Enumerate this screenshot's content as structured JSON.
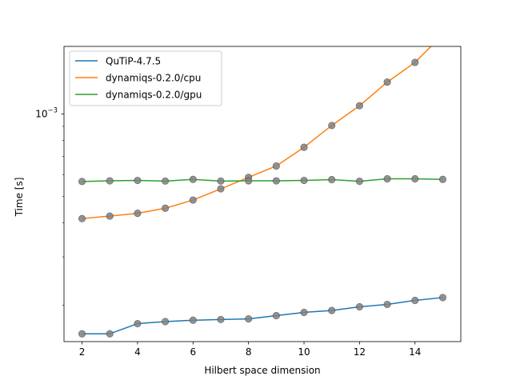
{
  "chart_data": {
    "type": "line",
    "xlabel": "Hilbert space dimension",
    "ylabel": "Time [s]",
    "yscale": "log",
    "xlim": [
      1.35,
      15.65
    ],
    "ylim": [
      0.000147,
      0.001765
    ],
    "x_ticks": [
      2,
      4,
      6,
      8,
      10,
      12,
      14
    ],
    "x_tick_labels": [
      "2",
      "4",
      "6",
      "8",
      "10",
      "12",
      "14"
    ],
    "y_major_ticks": [
      0.001
    ],
    "y_major_tick_labels": [
      {
        "base": "10",
        "exp": "−3"
      }
    ],
    "y_minor_ticks": [
      0.0002,
      0.0003,
      0.0004,
      0.0005,
      0.0006,
      0.0007,
      0.0008,
      0.0009
    ],
    "grid": false,
    "legend_position": "top-left",
    "marker_color": "#808080",
    "x": [
      2,
      3,
      4,
      5,
      6,
      7,
      8,
      9,
      10,
      11,
      12,
      13,
      14,
      15
    ],
    "series": [
      {
        "name": "QuTiP-4.7.5",
        "color": "#1f77b4",
        "values": [
          0.000157,
          0.000157,
          0.000171,
          0.000174,
          0.000176,
          0.000177,
          0.000178,
          0.000183,
          0.000188,
          0.000191,
          0.000197,
          0.000201,
          0.000208,
          0.000213
        ]
      },
      {
        "name": "dynamiqs-0.2.0/cpu",
        "color": "#ff7f0e",
        "values": [
          0.000414,
          0.000423,
          0.000433,
          0.000452,
          0.000484,
          0.000532,
          0.000586,
          0.000645,
          0.000755,
          0.000907,
          0.001071,
          0.001307,
          0.001543,
          0.001948
        ]
      },
      {
        "name": "dynamiqs-0.2.0/gpu",
        "color": "#2ca02c",
        "values": [
          0.000566,
          0.000569,
          0.000571,
          0.000568,
          0.000576,
          0.000568,
          0.000569,
          0.000569,
          0.000571,
          0.000575,
          0.000567,
          0.000579,
          0.000579,
          0.000576
        ]
      }
    ]
  }
}
